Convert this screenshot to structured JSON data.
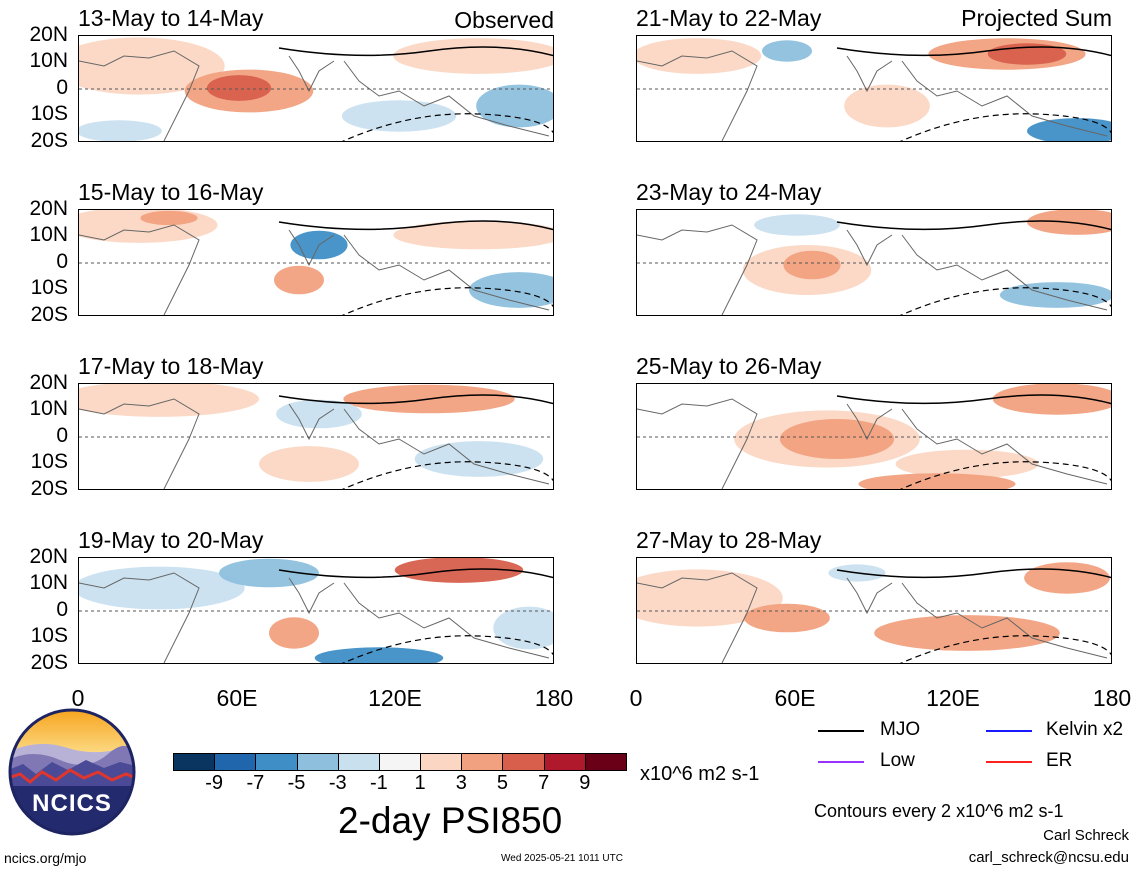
{
  "panels": [
    {
      "title": "13-May to 14-May",
      "tag": "Observed"
    },
    {
      "title": "21-May to 22-May",
      "tag": "Projected Sum"
    },
    {
      "title": "15-May to 16-May",
      "tag": ""
    },
    {
      "title": "23-May to 24-May",
      "tag": ""
    },
    {
      "title": "17-May to 18-May",
      "tag": ""
    },
    {
      "title": "25-May to 26-May",
      "tag": ""
    },
    {
      "title": "19-May to 20-May",
      "tag": ""
    },
    {
      "title": "27-May to 28-May",
      "tag": ""
    }
  ],
  "y_axis_labels": [
    "20N",
    "10N",
    "0",
    "10S",
    "20S"
  ],
  "x_axis_labels": [
    "0",
    "60E",
    "120E",
    "180"
  ],
  "colorbar": {
    "colors": [
      "#0b3561",
      "#1f66ad",
      "#3f8fc6",
      "#8ec0de",
      "#c9e0ef",
      "#f5f5f5",
      "#fbd7c3",
      "#f1a17f",
      "#d75f4c",
      "#b0182c",
      "#690017"
    ],
    "ticks": [
      "-9",
      "-7",
      "-5",
      "-3",
      "-1",
      "1",
      "3",
      "5",
      "7",
      "9"
    ],
    "units": "x10^6 m2 s-1",
    "title": "2-day PSI850"
  },
  "legend": {
    "items": [
      {
        "label": "MJO",
        "color": "#000000"
      },
      {
        "label": "Kelvin x2",
        "color": "#1a1aff"
      },
      {
        "label": "Low",
        "color": "#9b30ff"
      },
      {
        "label": "ER",
        "color": "#ff2020"
      }
    ],
    "contour_note": "Contours every 2 x10^6 m2 s-1"
  },
  "logo": {
    "text": "NCICS"
  },
  "footer": {
    "left": "ncics.org/mjo",
    "center": "Wed 2025-05-21 1011 UTC",
    "author": "Carl Schreck",
    "email": "carl_schreck@ncsu.edu"
  }
}
